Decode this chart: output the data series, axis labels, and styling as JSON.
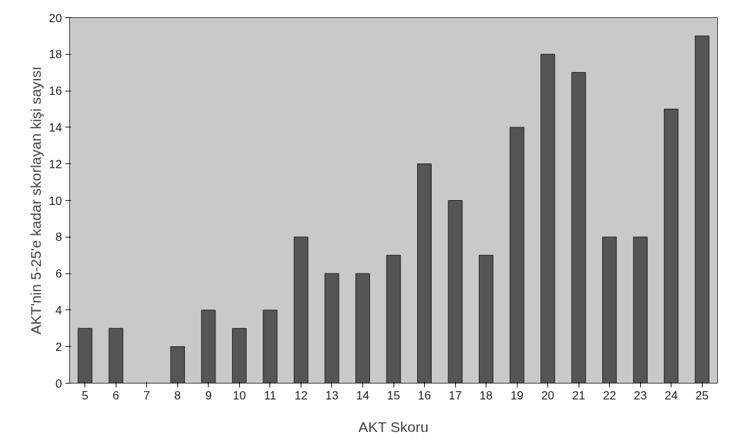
{
  "chart_data": {
    "type": "bar",
    "xlabel": "AKT Skoru",
    "ylabel": "AKT'nin 5-25'e kadar skorlayan kişi sayısı",
    "categories": [
      "5",
      "6",
      "7",
      "8",
      "9",
      "10",
      "11",
      "12",
      "13",
      "14",
      "15",
      "16",
      "17",
      "18",
      "19",
      "20",
      "21",
      "22",
      "23",
      "24",
      "25"
    ],
    "values": [
      3,
      3,
      0,
      2,
      4,
      3,
      4,
      8,
      6,
      6,
      7,
      12,
      10,
      7,
      14,
      18,
      17,
      8,
      8,
      15,
      19
    ],
    "color": "#555555",
    "ylim": [
      0,
      20
    ],
    "yticks": [
      0,
      2,
      4,
      6,
      8,
      10,
      12,
      14,
      16,
      18,
      20
    ]
  }
}
